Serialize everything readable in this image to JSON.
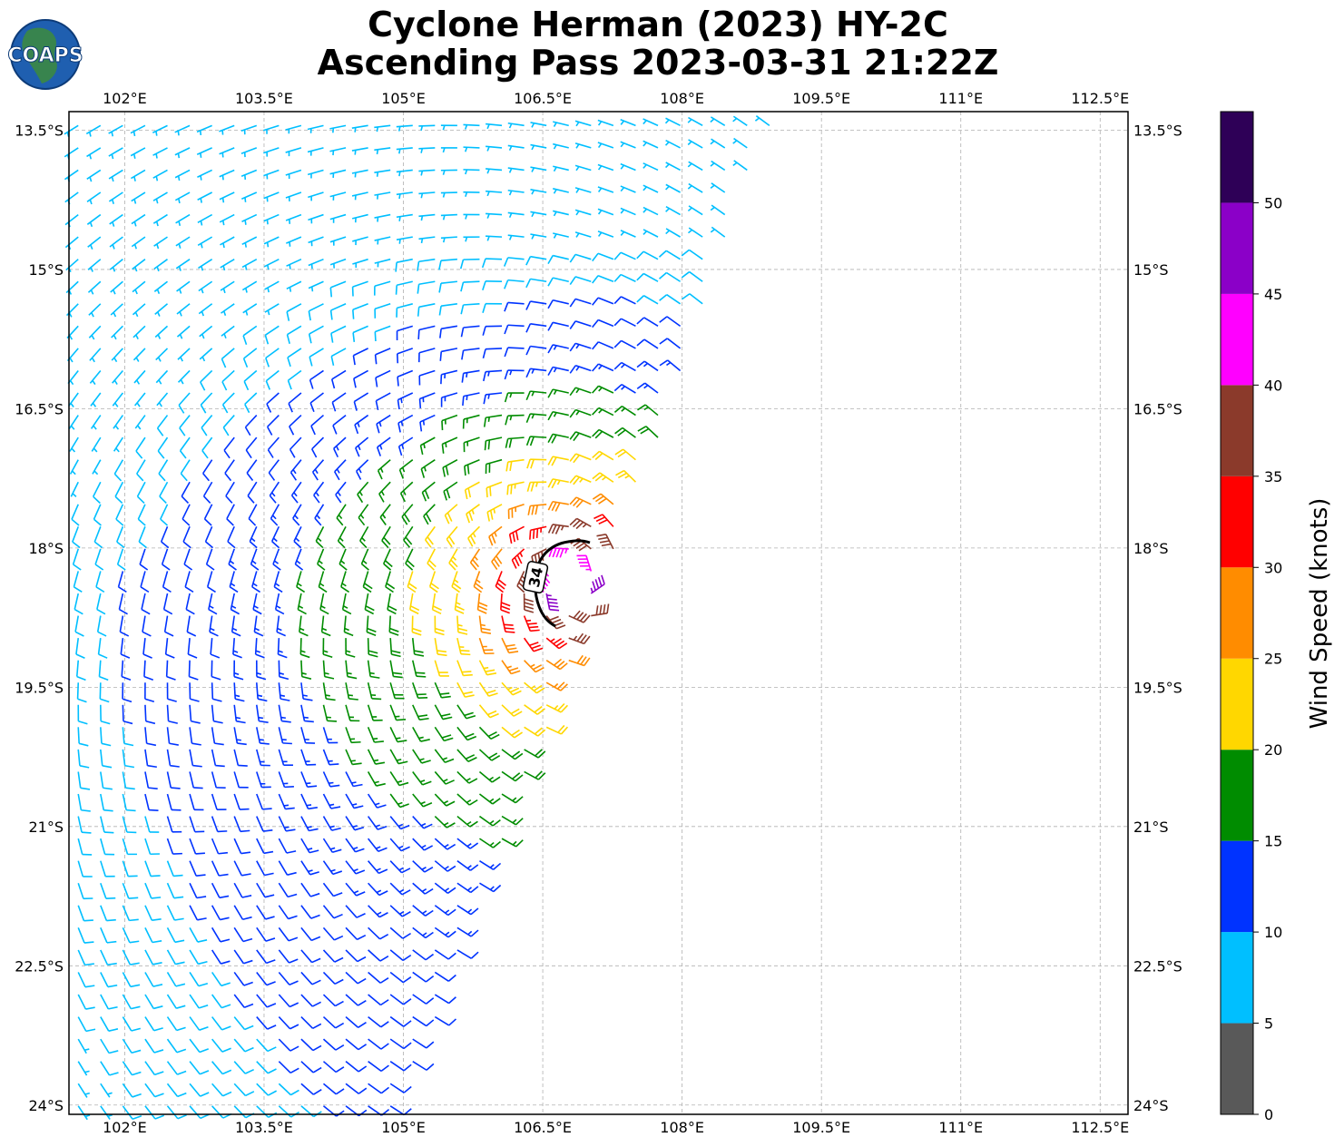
{
  "chart_data": {
    "type": "wind-barb-map",
    "title_line1": "Cyclone Herman (2023) HY-2C",
    "title_line2": "Ascending Pass 2023-03-31 21:22Z",
    "logo_text": "COAPS",
    "x_ticks": [
      "102°E",
      "103.5°E",
      "105°E",
      "106.5°E",
      "108°E",
      "109.5°E",
      "111°E",
      "112.5°E"
    ],
    "x_tick_values": [
      102,
      103.5,
      105,
      106.5,
      108,
      109.5,
      111,
      112.5
    ],
    "y_ticks": [
      "13.5°S",
      "15°S",
      "16.5°S",
      "18°S",
      "19.5°S",
      "21°S",
      "22.5°S",
      "24°S"
    ],
    "y_tick_values": [
      -13.5,
      -15,
      -16.5,
      -18,
      -19.5,
      -21,
      -22.5,
      -24
    ],
    "xlim": [
      101.4,
      112.8
    ],
    "ylim": [
      -24.1,
      -13.3
    ],
    "grid": true,
    "center": {
      "lon": 106.85,
      "lat": -18.35
    },
    "radius_34kt_label": "34",
    "colorbar": {
      "label": "Wind Speed (knots)",
      "ticks": [
        "0",
        "5",
        "10",
        "15",
        "20",
        "25",
        "30",
        "35",
        "40",
        "45",
        "50"
      ],
      "bins": [
        {
          "min": 0,
          "max": 5,
          "color": "#595959"
        },
        {
          "min": 5,
          "max": 10,
          "color": "#00bfff"
        },
        {
          "min": 10,
          "max": 15,
          "color": "#0033ff"
        },
        {
          "min": 15,
          "max": 20,
          "color": "#008c00"
        },
        {
          "min": 20,
          "max": 25,
          "color": "#ffd700"
        },
        {
          "min": 25,
          "max": 30,
          "color": "#ff8c00"
        },
        {
          "min": 30,
          "max": 35,
          "color": "#ff0000"
        },
        {
          "min": 35,
          "max": 40,
          "color": "#8b3a2b"
        },
        {
          "min": 40,
          "max": 45,
          "color": "#ff00ff"
        },
        {
          "min": 45,
          "max": 50,
          "color": "#8b00c8"
        },
        {
          "min": 50,
          "max": 55,
          "color": "#2e0057"
        }
      ]
    }
  }
}
